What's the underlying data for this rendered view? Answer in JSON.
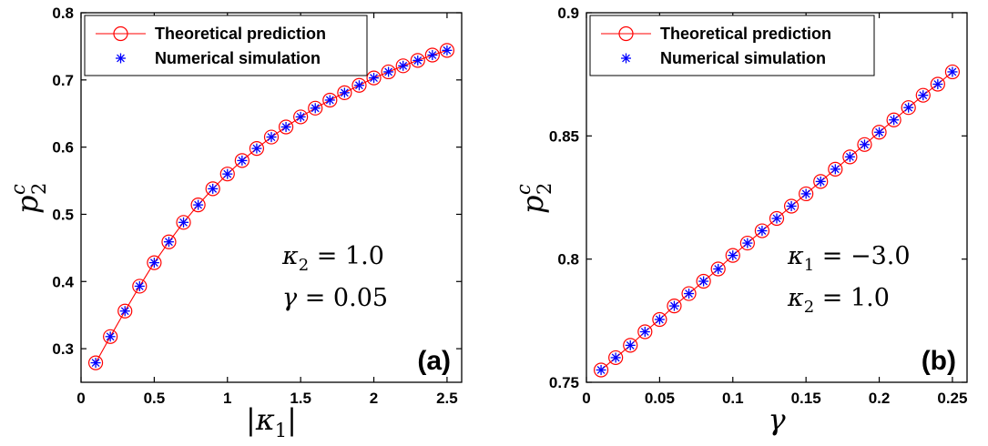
{
  "chart_data": [
    {
      "type": "line",
      "panel_label": "(a)",
      "xlabel": {
        "open": "|",
        "symbol": "κ",
        "sub": "1",
        "close": "|"
      },
      "ylabel": {
        "symbol": "p",
        "sup": "c",
        "sub": "2"
      },
      "xlim": [
        0,
        2.6
      ],
      "ylim": [
        0.25,
        0.8
      ],
      "xticks": [
        0,
        0.5,
        1,
        1.5,
        2,
        2.5
      ],
      "xtick_labels": [
        "0",
        "0.5",
        "1",
        "1.5",
        "2",
        "2.5"
      ],
      "yticks": [
        0.3,
        0.4,
        0.5,
        0.6,
        0.7,
        0.8
      ],
      "ytick_labels": [
        "0.3",
        "0.4",
        "0.5",
        "0.6",
        "0.7",
        "0.8"
      ],
      "legend_position": "top-left",
      "annotations": [
        {
          "symbol": "κ",
          "sub": "2",
          "rest": " = 1.0"
        },
        {
          "symbol": "γ",
          "sub": "",
          "rest": " = 0.05"
        }
      ],
      "series": [
        {
          "name": "Theoretical prediction",
          "color": "#ff0000",
          "marker": "circle",
          "x": [
            0.1,
            0.2,
            0.3,
            0.4,
            0.5,
            0.6,
            0.7,
            0.8,
            0.9,
            1.0,
            1.1,
            1.2,
            1.3,
            1.4,
            1.5,
            1.6,
            1.7,
            1.8,
            1.9,
            2.0,
            2.1,
            2.2,
            2.3,
            2.4,
            2.5
          ],
          "y": [
            0.279,
            0.318,
            0.356,
            0.393,
            0.428,
            0.459,
            0.488,
            0.514,
            0.538,
            0.56,
            0.58,
            0.598,
            0.615,
            0.63,
            0.645,
            0.658,
            0.67,
            0.681,
            0.692,
            0.703,
            0.712,
            0.721,
            0.729,
            0.737,
            0.744
          ]
        },
        {
          "name": "Numerical simulation",
          "color": "#0000ff",
          "marker": "asterisk",
          "x": [
            0.1,
            0.2,
            0.3,
            0.4,
            0.5,
            0.6,
            0.7,
            0.8,
            0.9,
            1.0,
            1.1,
            1.2,
            1.3,
            1.4,
            1.5,
            1.6,
            1.7,
            1.8,
            1.9,
            2.0,
            2.1,
            2.2,
            2.3,
            2.4,
            2.5
          ],
          "y": [
            0.279,
            0.318,
            0.356,
            0.393,
            0.428,
            0.459,
            0.488,
            0.514,
            0.538,
            0.56,
            0.58,
            0.598,
            0.615,
            0.63,
            0.645,
            0.658,
            0.67,
            0.681,
            0.692,
            0.703,
            0.712,
            0.721,
            0.729,
            0.737,
            0.744
          ]
        }
      ]
    },
    {
      "type": "line",
      "panel_label": "(b)",
      "xlabel": {
        "open": "",
        "symbol": "γ",
        "sub": "",
        "close": ""
      },
      "ylabel": {
        "symbol": "p",
        "sup": "c",
        "sub": "2"
      },
      "xlim": [
        0,
        0.26
      ],
      "ylim": [
        0.75,
        0.9
      ],
      "xticks": [
        0,
        0.05,
        0.1,
        0.15,
        0.2,
        0.25
      ],
      "xtick_labels": [
        "0",
        "0.05",
        "0.1",
        "0.15",
        "0.2",
        "0.25"
      ],
      "yticks": [
        0.75,
        0.8,
        0.85,
        0.9
      ],
      "ytick_labels": [
        "0.75",
        "0.8",
        "0.85",
        "0.9"
      ],
      "legend_position": "top-left",
      "annotations": [
        {
          "symbol": "κ",
          "sub": "1",
          "rest": " = −3.0"
        },
        {
          "symbol": "κ",
          "sub": "2",
          "rest": " = 1.0"
        }
      ],
      "series": [
        {
          "name": "Theoretical prediction",
          "color": "#ff0000",
          "marker": "circle",
          "x": [
            0.01,
            0.02,
            0.03,
            0.04,
            0.05,
            0.06,
            0.07,
            0.08,
            0.09,
            0.1,
            0.11,
            0.12,
            0.13,
            0.14,
            0.15,
            0.16,
            0.17,
            0.18,
            0.19,
            0.2,
            0.21,
            0.22,
            0.23,
            0.24,
            0.25
          ],
          "y": [
            0.755,
            0.76,
            0.765,
            0.7705,
            0.7755,
            0.781,
            0.786,
            0.791,
            0.796,
            0.8015,
            0.8065,
            0.8115,
            0.8165,
            0.8215,
            0.8265,
            0.8315,
            0.8365,
            0.8415,
            0.8465,
            0.8515,
            0.8565,
            0.8615,
            0.8665,
            0.871,
            0.876
          ]
        },
        {
          "name": "Numerical simulation",
          "color": "#0000ff",
          "marker": "asterisk",
          "x": [
            0.01,
            0.02,
            0.03,
            0.04,
            0.05,
            0.06,
            0.07,
            0.08,
            0.09,
            0.1,
            0.11,
            0.12,
            0.13,
            0.14,
            0.15,
            0.16,
            0.17,
            0.18,
            0.19,
            0.2,
            0.21,
            0.22,
            0.23,
            0.24,
            0.25
          ],
          "y": [
            0.755,
            0.76,
            0.765,
            0.7705,
            0.7755,
            0.781,
            0.786,
            0.791,
            0.796,
            0.8015,
            0.8065,
            0.8115,
            0.8165,
            0.8215,
            0.8265,
            0.8315,
            0.8365,
            0.8415,
            0.8465,
            0.8515,
            0.8565,
            0.8615,
            0.8665,
            0.871,
            0.876
          ]
        }
      ]
    }
  ]
}
